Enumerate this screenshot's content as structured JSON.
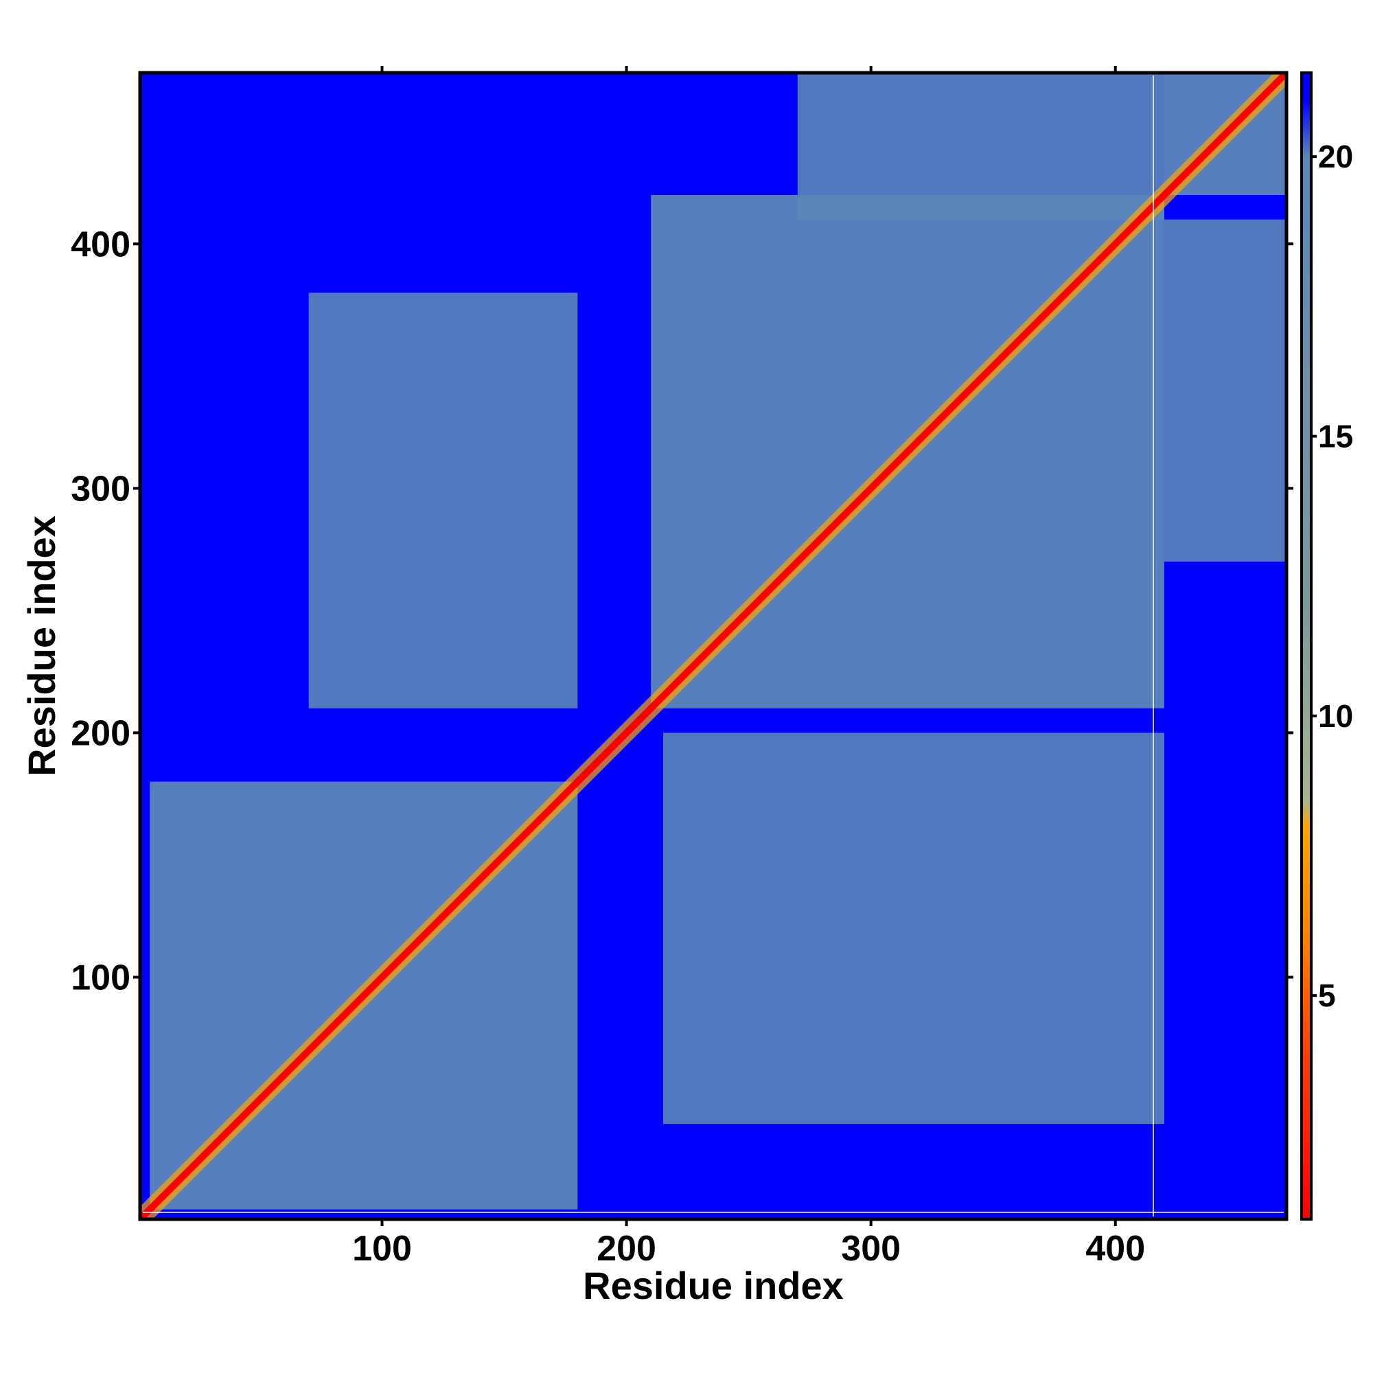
{
  "chart_data": {
    "type": "heatmap",
    "title": "",
    "xlabel": "Residue index",
    "ylabel": "Residue index",
    "xlim": [
      1,
      470
    ],
    "ylim": [
      1,
      470
    ],
    "x_ticks": [
      100,
      200,
      300,
      400
    ],
    "y_ticks": [
      100,
      200,
      300,
      400
    ],
    "colorbar": {
      "ticks": [
        5,
        10,
        15,
        20
      ],
      "range": [
        1,
        21.5
      ],
      "stops": [
        {
          "value": 1,
          "color": "#ff0000"
        },
        {
          "value": 4,
          "color": "#ff4000"
        },
        {
          "value": 6,
          "color": "#ff8000"
        },
        {
          "value": 8,
          "color": "#ffa500"
        },
        {
          "value": 8.5,
          "color": "#a7b58e"
        },
        {
          "value": 12,
          "color": "#7b9a9e"
        },
        {
          "value": 20,
          "color": "#5a86b8"
        },
        {
          "value": 21,
          "color": "#0000ff"
        }
      ]
    },
    "background_color": "#0000ff",
    "contact_color": "#5b86b8",
    "diagonal_color": "#ff0000",
    "domains": [
      {
        "start": 5,
        "end": 180
      },
      {
        "start": 210,
        "end": 420
      },
      {
        "start": 420,
        "end": 470
      }
    ],
    "interdomain_blocks": [
      {
        "x": [
          70,
          180
        ],
        "y": [
          210,
          380
        ]
      },
      {
        "x": [
          215,
          420
        ],
        "y": [
          40,
          200
        ]
      },
      {
        "x": [
          270,
          420
        ],
        "y": [
          410,
          470
        ]
      },
      {
        "x": [
          420,
          470
        ],
        "y": [
          270,
          410
        ]
      }
    ]
  }
}
